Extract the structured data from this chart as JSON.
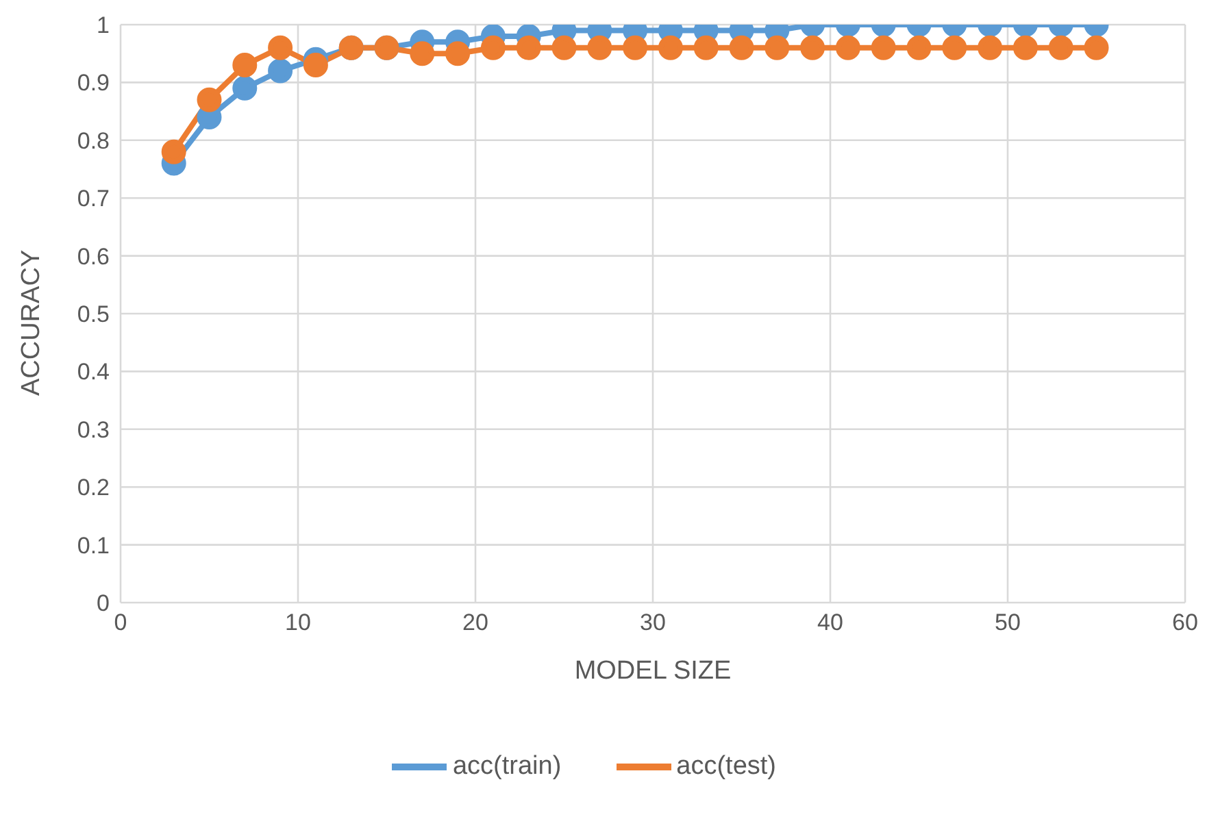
{
  "chart_data": {
    "type": "line",
    "xlabel": "MODEL SIZE",
    "ylabel": "ACCURACY",
    "x": [
      3,
      5,
      7,
      9,
      11,
      13,
      15,
      17,
      19,
      21,
      23,
      25,
      27,
      29,
      31,
      33,
      35,
      37,
      39,
      41,
      43,
      45,
      47,
      49,
      51,
      53,
      55
    ],
    "series": [
      {
        "name": "acc(train)",
        "color": "#5b9bd5",
        "values": [
          0.76,
          0.84,
          0.89,
          0.92,
          0.94,
          0.96,
          0.96,
          0.97,
          0.97,
          0.98,
          0.98,
          0.99,
          0.99,
          0.99,
          0.99,
          0.99,
          0.99,
          0.99,
          1,
          1,
          1,
          1,
          1,
          1,
          1,
          1,
          1
        ]
      },
      {
        "name": "acc(test)",
        "color": "#ed7d31",
        "values": [
          0.78,
          0.87,
          0.93,
          0.96,
          0.93,
          0.96,
          0.96,
          0.95,
          0.95,
          0.96,
          0.96,
          0.96,
          0.96,
          0.96,
          0.96,
          0.96,
          0.96,
          0.96,
          0.96,
          0.96,
          0.96,
          0.96,
          0.96,
          0.96,
          0.96,
          0.96,
          0.96
        ]
      }
    ],
    "xlim": [
      0,
      60
    ],
    "xticks": [
      0,
      10,
      20,
      30,
      40,
      50,
      60
    ],
    "ylim": [
      0,
      1
    ],
    "yticks": [
      0,
      0.1,
      0.2,
      0.3,
      0.4,
      0.5,
      0.6,
      0.7,
      0.8,
      0.9,
      1
    ],
    "grid": true,
    "legend": "bottom",
    "marker": "circle",
    "line_style": "solid"
  }
}
